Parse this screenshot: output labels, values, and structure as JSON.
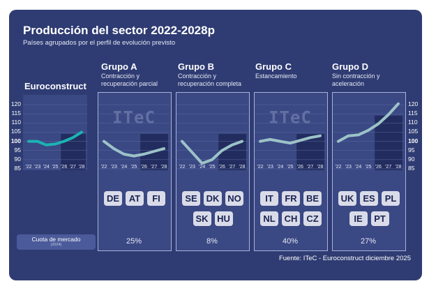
{
  "title": "Producción del sector 2022-2028p",
  "subtitle": "Países agrupados por el perfil de evolución previsto",
  "euroconstruct_label": "Euroconstruct",
  "market_share_label": "Cuota de mercado",
  "market_share_year": "(2024)",
  "source": "Fuente: ITeC - Euroconstruct diciembre 2025",
  "logo_text": "ITeC",
  "colors": {
    "background": "#2f3c73",
    "line": "#9cc3c8",
    "euro_line": "#1bb3b3",
    "forecast_shade": "#1b2352",
    "pill": "#d9dce8"
  },
  "chart_data": [
    {
      "type": "line",
      "id": "euroconstruct",
      "name": "Euroconstruct",
      "x": [
        "'22",
        "'23",
        "'24",
        "'25",
        "'26",
        "'27",
        "'28"
      ],
      "values": [
        100,
        100,
        98,
        98.5,
        100,
        102,
        105
      ],
      "ylim": [
        85,
        120
      ],
      "yticks": [
        85,
        90,
        95,
        100,
        105,
        110,
        115,
        120
      ],
      "forecast_from": "'26"
    },
    {
      "type": "line",
      "id": "grupo-a",
      "name": "Grupo A",
      "description": "Contracción y recuperación parcial",
      "x": [
        "'22",
        "'23",
        "'24",
        "'25",
        "'26",
        "'27",
        "'28"
      ],
      "values": [
        100,
        96,
        93,
        92,
        93,
        94.5,
        96
      ],
      "ylim": [
        85,
        120
      ],
      "forecast_from": "'26",
      "countries": [
        [
          "DE",
          "AT",
          "FI"
        ]
      ],
      "market_share": "25%"
    },
    {
      "type": "line",
      "id": "grupo-b",
      "name": "Grupo B",
      "description": "Contracción y recuperación completa",
      "x": [
        "'22",
        "'23",
        "'24",
        "'25",
        "'26",
        "'27",
        "'28"
      ],
      "values": [
        100,
        94,
        88,
        90,
        95,
        98,
        100
      ],
      "ylim": [
        85,
        120
      ],
      "forecast_from": "'26",
      "countries": [
        [
          "SE",
          "DK",
          "NO"
        ],
        [
          "SK",
          "HU"
        ]
      ],
      "market_share": "8%"
    },
    {
      "type": "line",
      "id": "grupo-c",
      "name": "Grupo C",
      "description": "Estancamiento",
      "x": [
        "'22",
        "'23",
        "'24",
        "'25",
        "'26",
        "'27",
        "'28"
      ],
      "values": [
        100,
        101,
        100,
        99,
        100.5,
        102,
        103
      ],
      "ylim": [
        85,
        120
      ],
      "forecast_from": "'26",
      "countries": [
        [
          "IT",
          "FR",
          "BE"
        ],
        [
          "NL",
          "CH",
          "CZ"
        ]
      ],
      "market_share": "40%"
    },
    {
      "type": "line",
      "id": "grupo-d",
      "name": "Grupo D",
      "description": "Sin contracción y aceleración",
      "x": [
        "'22",
        "'23",
        "'24",
        "'25",
        "'26",
        "'27",
        "'28"
      ],
      "values": [
        100,
        103,
        103.5,
        106,
        109.5,
        114.5,
        120.5
      ],
      "ylim": [
        85,
        120
      ],
      "yticks": [
        85,
        90,
        95,
        100,
        105,
        110,
        115,
        120
      ],
      "forecast_from": "'26",
      "countries": [
        [
          "UK",
          "ES",
          "PL"
        ],
        [
          "IE",
          "PT"
        ]
      ],
      "market_share": "27%"
    }
  ]
}
